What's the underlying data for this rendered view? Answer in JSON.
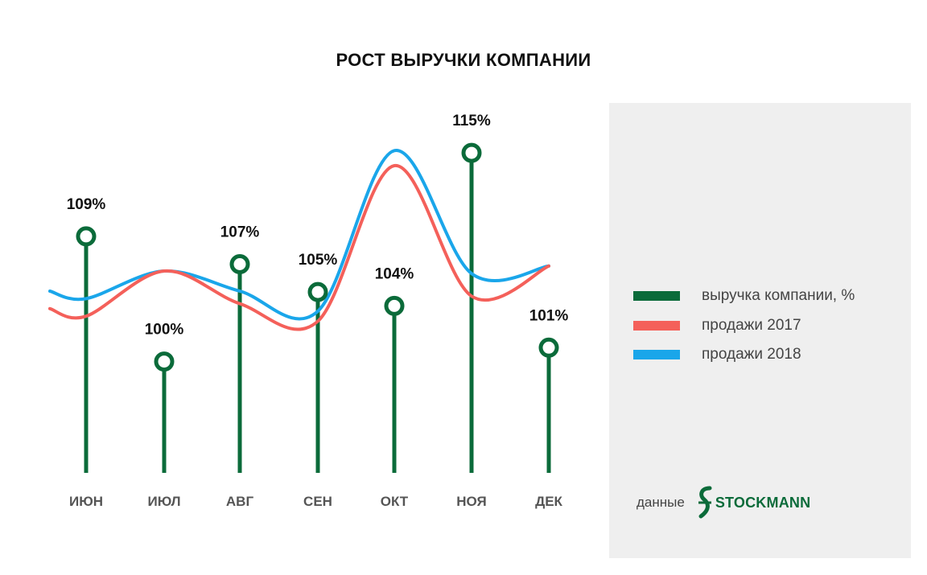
{
  "colors": {
    "revenue": "#0b6b3a",
    "sales_2017": "#f4605a",
    "sales_2018": "#1aa6ea",
    "axis_text": "#555555",
    "panel_bg": "#efefef"
  },
  "legend": {
    "items": [
      {
        "label": "выручка компании, %",
        "color": "#0b6b3a"
      },
      {
        "label": "продажи 2017",
        "color": "#f4605a"
      },
      {
        "label": "продажи 2018",
        "color": "#1aa6ea"
      }
    ]
  },
  "source": {
    "prefix": "данные",
    "brand": "STOCKMANN",
    "brand_icon": "stockmann-s-logo-icon"
  },
  "chart_data": {
    "type": "line",
    "title": "РОСТ ВЫРУЧКИ КОМПАНИИ",
    "categories": [
      "ИЮН",
      "ИЮЛ",
      "АВГ",
      "СЕН",
      "ОКТ",
      "НОЯ",
      "ДЕК"
    ],
    "revenue_labels": [
      "109%",
      "100%",
      "107%",
      "105%",
      "104%",
      "115%",
      "101%"
    ],
    "series": [
      {
        "name": "выручка компании, %",
        "type": "lollipop",
        "values": [
          109,
          100,
          107,
          105,
          104,
          115,
          101
        ]
      },
      {
        "name": "продажи 2017",
        "type": "line",
        "values": [
          0.4,
          0.58,
          0.45,
          0.38,
          1.0,
          0.48,
          0.6
        ]
      },
      {
        "name": "продажи 2018",
        "type": "line",
        "values": [
          0.47,
          0.58,
          0.5,
          0.42,
          1.06,
          0.57,
          0.6
        ]
      }
    ],
    "ylim": [
      92,
      122
    ],
    "sales_ylim": [
      0,
      1.2
    ],
    "grid": false,
    "legend_position": "right"
  }
}
